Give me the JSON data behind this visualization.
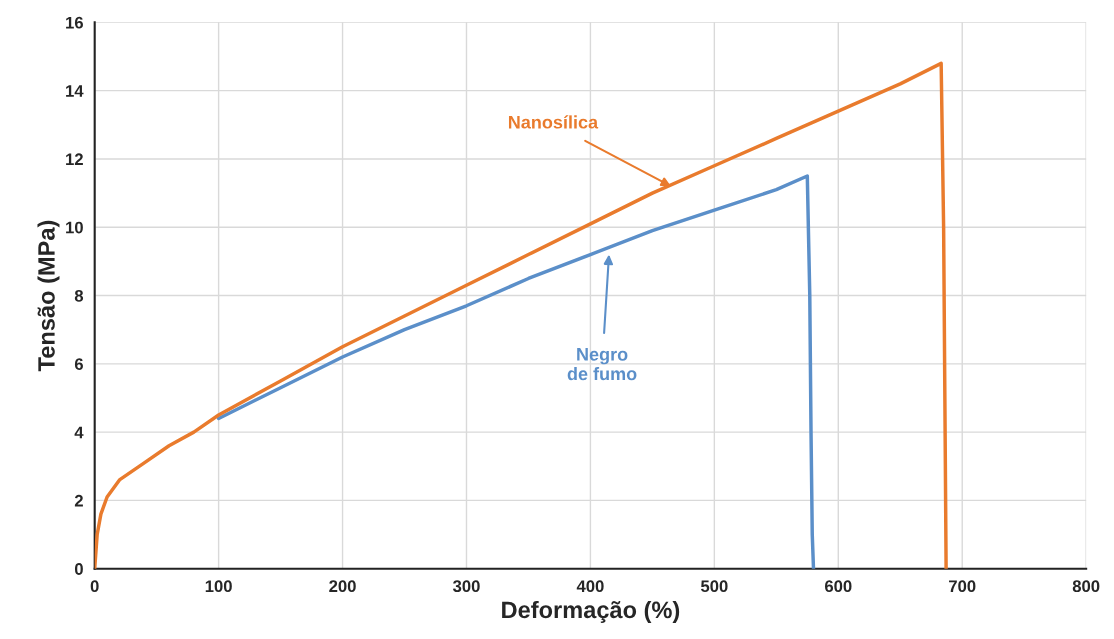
{
  "chart_data": {
    "type": "line",
    "xlabel": "Deformação (%)",
    "ylabel": "Tensão (MPa)",
    "xlim": [
      0,
      800
    ],
    "xticks": [
      0,
      100,
      200,
      300,
      400,
      500,
      600,
      700,
      800
    ],
    "ylim": [
      0,
      16
    ],
    "yticks": [
      0,
      2,
      4,
      6,
      8,
      10,
      12,
      14,
      16
    ],
    "grid": true,
    "legend": false,
    "line_style": "solid",
    "marker": "none",
    "series": [
      {
        "color": "#e97b2d",
        "x": [
          0,
          2,
          5,
          10,
          20,
          40,
          60,
          80,
          100,
          150,
          200,
          250,
          300,
          350,
          400,
          450,
          500,
          550,
          600,
          650,
          683,
          685,
          686,
          687
        ],
        "values": [
          0,
          1,
          1.6,
          2.1,
          2.6,
          3.1,
          3.6,
          4.0,
          4.5,
          5.5,
          6.5,
          7.4,
          8.3,
          9.2,
          10.1,
          11.0,
          11.8,
          12.6,
          13.4,
          14.2,
          14.8,
          10,
          5,
          0
        ]
      },
      {
        "color": "#5b8fc9",
        "x": [
          100,
          150,
          200,
          250,
          300,
          350,
          400,
          450,
          500,
          550,
          575,
          577,
          578,
          579,
          580
        ],
        "values": [
          4.4,
          5.3,
          6.2,
          7.0,
          7.7,
          8.5,
          9.2,
          9.9,
          10.5,
          11.1,
          11.5,
          8,
          4,
          1,
          0
        ]
      }
    ],
    "annotations": [
      {
        "text": "Nanosílica",
        "x": 465,
        "y": 11.2
      },
      {
        "text": "Negro\nde fumo",
        "x": 415,
        "y": 9.2
      }
    ]
  }
}
